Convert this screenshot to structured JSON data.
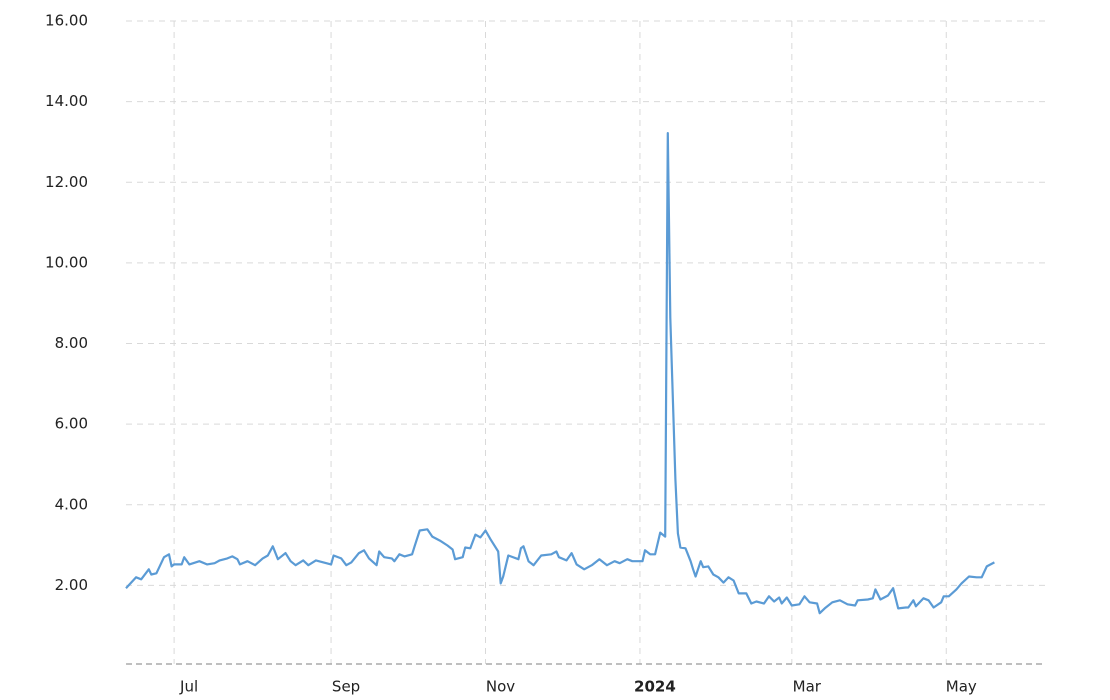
{
  "chart_data": {
    "type": "line",
    "color": "#5b9bd5",
    "grid": true,
    "ylim": [
      0,
      16
    ],
    "yticks": [
      {
        "value": 2,
        "label": "2.00"
      },
      {
        "value": 4,
        "label": "4.00"
      },
      {
        "value": 6,
        "label": "6.00"
      },
      {
        "value": 8,
        "label": "8.00"
      },
      {
        "value": 10,
        "label": "10.00"
      },
      {
        "value": 12,
        "label": "12.00"
      },
      {
        "value": 14,
        "label": "14.00"
      },
      {
        "value": 16,
        "label": "16.00"
      }
    ],
    "xlim": [
      0,
      363
    ],
    "xticks": [
      {
        "value": 19,
        "label": "Jul"
      },
      {
        "value": 81,
        "label": "Sep"
      },
      {
        "value": 142,
        "label": "Nov"
      },
      {
        "value": 203,
        "label": "2024"
      },
      {
        "value": 263,
        "label": "Mar"
      },
      {
        "value": 324,
        "label": "May"
      }
    ],
    "x": [
      0,
      4,
      6,
      9,
      10,
      12,
      15,
      17,
      18,
      19,
      22,
      23,
      25,
      29,
      32,
      35,
      37,
      40,
      42,
      44,
      45,
      48,
      51,
      54,
      56,
      58,
      60,
      63,
      65,
      67,
      70,
      72,
      75,
      78,
      81,
      82,
      85,
      87,
      89,
      92,
      94,
      96,
      99,
      100,
      102,
      105,
      106,
      108,
      110,
      113,
      114,
      116,
      119,
      121,
      124,
      127,
      129,
      130,
      133,
      134,
      136,
      138,
      140,
      142,
      144,
      147,
      148,
      149,
      151,
      155,
      156,
      157,
      159,
      161,
      164,
      168,
      170,
      171,
      174,
      176,
      178,
      181,
      184,
      187,
      190,
      193,
      195,
      198,
      200,
      204,
      205,
      207,
      209,
      211,
      213,
      214,
      215,
      217,
      218,
      219,
      221,
      223,
      224,
      225,
      227,
      228,
      230,
      232,
      234,
      236,
      238,
      240,
      242,
      245,
      247,
      249,
      252,
      254,
      256,
      258,
      259,
      261,
      263,
      266,
      268,
      270,
      273,
      274,
      276,
      279,
      282,
      285,
      288,
      289,
      293,
      295,
      296,
      298,
      301,
      303,
      305,
      308,
      309,
      311,
      312,
      315,
      317,
      319,
      322,
      323,
      325,
      328,
      330,
      333,
      336,
      338,
      340,
      343
    ],
    "values": [
      1.93,
      2.2,
      2.15,
      2.4,
      2.27,
      2.3,
      2.7,
      2.77,
      2.47,
      2.52,
      2.52,
      2.7,
      2.52,
      2.6,
      2.52,
      2.55,
      2.62,
      2.67,
      2.72,
      2.65,
      2.52,
      2.6,
      2.5,
      2.67,
      2.74,
      2.97,
      2.65,
      2.8,
      2.6,
      2.5,
      2.62,
      2.5,
      2.62,
      2.57,
      2.52,
      2.74,
      2.67,
      2.5,
      2.57,
      2.8,
      2.87,
      2.67,
      2.5,
      2.84,
      2.7,
      2.67,
      2.6,
      2.77,
      2.72,
      2.77,
      2.97,
      3.36,
      3.39,
      3.21,
      3.11,
      2.99,
      2.89,
      2.65,
      2.7,
      2.94,
      2.92,
      3.26,
      3.19,
      3.36,
      3.14,
      2.84,
      2.05,
      2.22,
      2.74,
      2.65,
      2.92,
      2.97,
      2.6,
      2.5,
      2.74,
      2.77,
      2.84,
      2.7,
      2.62,
      2.8,
      2.52,
      2.4,
      2.5,
      2.65,
      2.5,
      2.6,
      2.55,
      2.65,
      2.6,
      2.6,
      2.87,
      2.77,
      2.77,
      3.31,
      3.21,
      13.22,
      8.64,
      4.63,
      3.29,
      2.94,
      2.92,
      2.6,
      2.4,
      2.22,
      2.6,
      2.45,
      2.47,
      2.27,
      2.2,
      2.07,
      2.2,
      2.12,
      1.8,
      1.8,
      1.55,
      1.6,
      1.55,
      1.73,
      1.6,
      1.7,
      1.55,
      1.7,
      1.5,
      1.53,
      1.73,
      1.58,
      1.55,
      1.31,
      1.43,
      1.58,
      1.63,
      1.53,
      1.5,
      1.63,
      1.65,
      1.68,
      1.9,
      1.65,
      1.75,
      1.93,
      1.43,
      1.45,
      1.45,
      1.63,
      1.48,
      1.68,
      1.63,
      1.45,
      1.58,
      1.73,
      1.73,
      1.9,
      2.05,
      2.22,
      2.2,
      2.2,
      2.47,
      2.57
    ]
  }
}
